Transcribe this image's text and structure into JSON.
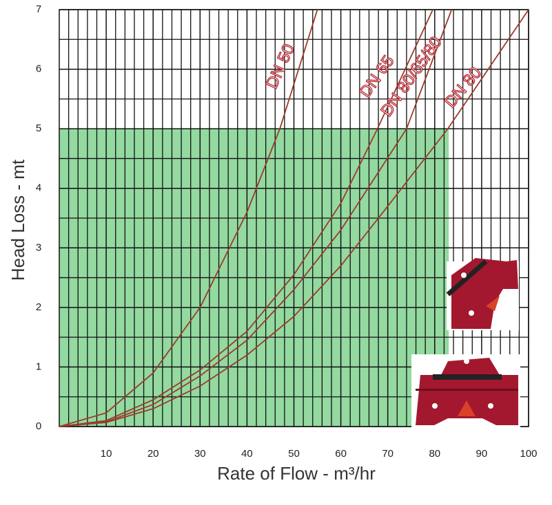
{
  "chart_data": {
    "type": "line",
    "xlabel": "Rate of Flow - m³/hr",
    "ylabel": "Head Loss - mt",
    "xlim": [
      0,
      100
    ],
    "xticks": [
      10,
      20,
      30,
      40,
      50,
      60,
      70,
      80,
      90,
      100
    ],
    "ylim": [
      0,
      7
    ],
    "yticks": [
      0,
      1,
      2,
      3,
      4,
      5,
      6,
      7
    ],
    "grid": true,
    "shaded_region": {
      "xlim": [
        0,
        83
      ],
      "ylim": [
        0,
        5
      ],
      "color": "#93d9a0"
    },
    "series": [
      {
        "name": "DN 50",
        "color": "#9b3a2a",
        "x": [
          0,
          10,
          20,
          30,
          40,
          47,
          55
        ],
        "values": [
          0,
          0.23,
          0.9,
          2.0,
          3.6,
          5,
          7
        ]
      },
      {
        "name": "DN 65",
        "color": "#9b3a2a",
        "x": [
          0,
          10,
          20,
          30,
          40,
          50,
          60,
          67.8,
          79.6
        ],
        "values": [
          0,
          0.1,
          0.45,
          0.95,
          1.6,
          2.55,
          3.75,
          5,
          7
        ]
      },
      {
        "name": "DN 80/65/80",
        "color": "#9b3a2a",
        "x": [
          0,
          10,
          20,
          30,
          40,
          50,
          60,
          74,
          83.6
        ],
        "values": [
          0,
          0.08,
          0.37,
          0.85,
          1.45,
          2.3,
          3.3,
          5,
          7
        ]
      },
      {
        "name": "DN 80",
        "color": "#9b3a2a",
        "x": [
          0,
          10,
          20,
          30,
          40,
          50,
          60,
          70,
          82.8,
          100
        ],
        "values": [
          0,
          0.07,
          0.3,
          0.68,
          1.2,
          1.85,
          2.7,
          3.7,
          5,
          7
        ]
      }
    ]
  }
}
